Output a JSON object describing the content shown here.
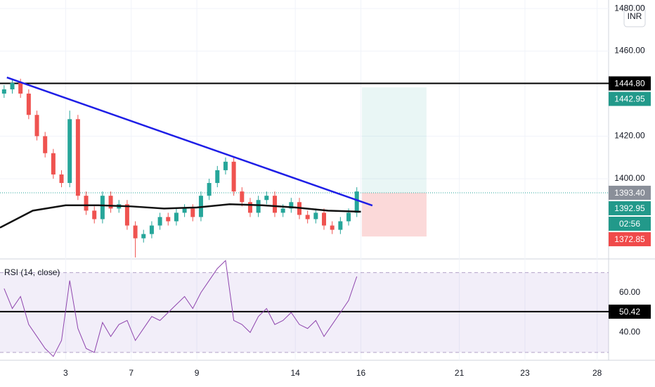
{
  "chart_data": [
    {
      "type": "candlestick",
      "currency": "INR",
      "x": [
        0.125,
        0.375,
        0.625,
        0.875,
        1.125,
        1.375,
        1.625,
        1.875,
        2.125,
        2.375,
        2.625,
        2.875,
        3.125,
        3.375,
        3.625,
        3.875,
        4.125,
        4.375,
        4.625,
        4.875,
        5.125,
        5.375,
        5.625,
        5.875,
        6.125,
        6.375,
        6.625,
        6.875,
        7.125,
        7.375,
        7.625,
        7.875,
        8.125,
        8.375,
        8.625,
        8.875,
        9.125,
        9.375,
        9.625,
        9.875,
        10.125,
        10.375,
        10.625,
        10.875
      ],
      "open": [
        1440,
        1442,
        1445,
        1440,
        1430,
        1420,
        1412,
        1402,
        1398,
        1428,
        1392,
        1385,
        1381,
        1392,
        1386,
        1388,
        1378,
        1372,
        1374,
        1378,
        1382,
        1380,
        1384,
        1386,
        1382,
        1392,
        1398,
        1404,
        1408,
        1394,
        1389,
        1384,
        1390,
        1392,
        1384,
        1386,
        1389,
        1383,
        1381,
        1384,
        1378,
        1376,
        1380,
        1384
      ],
      "high": [
        1444,
        1447,
        1447,
        1442,
        1432,
        1422,
        1414,
        1404,
        1432,
        1430,
        1394,
        1387,
        1394,
        1394,
        1390,
        1390,
        1380,
        1376,
        1380,
        1384,
        1384,
        1386,
        1388,
        1388,
        1394,
        1400,
        1406,
        1410,
        1410,
        1396,
        1391,
        1392,
        1394,
        1394,
        1388,
        1391,
        1391,
        1385,
        1386,
        1386,
        1380,
        1382,
        1386,
        1396
      ],
      "low": [
        1438,
        1440,
        1438,
        1428,
        1418,
        1410,
        1400,
        1396,
        1396,
        1390,
        1383,
        1379,
        1379,
        1384,
        1384,
        1376,
        1363,
        1370,
        1372,
        1376,
        1378,
        1378,
        1382,
        1380,
        1380,
        1390,
        1396,
        1402,
        1392,
        1387,
        1382,
        1382,
        1388,
        1382,
        1382,
        1384,
        1381,
        1379,
        1379,
        1376,
        1374,
        1374,
        1378,
        1382
      ],
      "close": [
        1442,
        1445,
        1440,
        1430,
        1420,
        1412,
        1402,
        1398,
        1428,
        1392,
        1385,
        1381,
        1392,
        1386,
        1388,
        1378,
        1372,
        1374,
        1378,
        1382,
        1380,
        1384,
        1386,
        1382,
        1392,
        1398,
        1404,
        1408,
        1394,
        1389,
        1384,
        1390,
        1392,
        1384,
        1386,
        1389,
        1383,
        1381,
        1384,
        1378,
        1376,
        1380,
        1384,
        1394
      ],
      "up_color": "#26a69a",
      "down_color": "#ef5350",
      "xlim": [
        0,
        18.55
      ],
      "ylim": [
        1362.3,
        1484
      ],
      "yticks": [
        {
          "value": 1480,
          "label": "1480.00"
        },
        {
          "value": 1460,
          "label": "1460.00"
        },
        {
          "value": 1420,
          "label": "1420.00"
        },
        {
          "value": 1400,
          "label": "1400.00"
        }
      ],
      "lines": [
        {
          "color": "#111111",
          "x": [
            0,
            1,
            2,
            3,
            4,
            5,
            6,
            7,
            8,
            9,
            10,
            11
          ],
          "values": [
            1377,
            1385,
            1387.5,
            1387.5,
            1387,
            1386,
            1386.5,
            1388,
            1387.5,
            1386.5,
            1385,
            1384.5
          ]
        },
        {
          "color": "#1e1ee6",
          "x": [
            0.21,
            11.35
          ],
          "values": [
            1447.6,
            1387.4
          ]
        }
      ],
      "levels": [
        {
          "value": 1444.8,
          "label": "1444.80",
          "color": "#000000",
          "line": "solid"
        },
        {
          "value": 1442.95,
          "label": "1442.95",
          "color": "#22998a"
        },
        {
          "value": 1393.4,
          "label": "1393.40",
          "color": "#8a8f99",
          "line": "dotted"
        },
        {
          "value": 1392.95,
          "label": "1392.95",
          "color": "#22998a"
        },
        {
          "value": 1372.85,
          "label": "1372.85",
          "color": "#f04a4a"
        }
      ],
      "countdown": "02:56",
      "position": {
        "x": [
          11.03,
          13.0
        ],
        "target": 1,
        "entry": 2,
        "stop": 4
      }
    },
    {
      "type": "line",
      "title": "RSI (14, close)",
      "color": "#8e44ad",
      "x": [
        0.125,
        0.375,
        0.625,
        0.875,
        1.125,
        1.375,
        1.625,
        1.875,
        2.125,
        2.375,
        2.625,
        2.875,
        3.125,
        3.375,
        3.625,
        3.875,
        4.125,
        4.375,
        4.625,
        4.875,
        5.125,
        5.375,
        5.625,
        5.875,
        6.125,
        6.375,
        6.625,
        6.875,
        7.125,
        7.375,
        7.625,
        7.875,
        8.125,
        8.375,
        8.625,
        8.875,
        9.125,
        9.375,
        9.625,
        9.875,
        10.125,
        10.375,
        10.625,
        10.875
      ],
      "values": [
        62,
        52,
        58,
        44,
        38,
        32,
        28,
        36,
        66,
        42,
        32,
        30,
        45,
        38,
        44,
        46,
        36,
        42,
        48,
        46,
        50,
        54,
        58,
        52,
        60,
        66,
        72,
        76,
        46,
        44,
        40,
        48,
        52,
        44,
        46,
        50,
        44,
        42,
        46,
        38,
        44,
        50,
        56,
        68
      ],
      "band": [
        30,
        70
      ],
      "level": {
        "value": 50.42,
        "label": "50.42"
      },
      "xlim": [
        0,
        18.55
      ],
      "ylim": [
        26.1,
        76.8
      ],
      "yticks": [
        {
          "value": 60,
          "label": "60.00"
        },
        {
          "value": 40,
          "label": "40.00"
        }
      ],
      "xticks": [
        {
          "value": 2,
          "label": "3"
        },
        {
          "value": 4,
          "label": "7"
        },
        {
          "value": 6,
          "label": "9"
        },
        {
          "value": 9,
          "label": "14"
        },
        {
          "value": 11,
          "label": "16"
        },
        {
          "value": 14,
          "label": "21"
        },
        {
          "value": 16,
          "label": "23"
        },
        {
          "value": 18.2,
          "label": "28"
        }
      ]
    }
  ]
}
